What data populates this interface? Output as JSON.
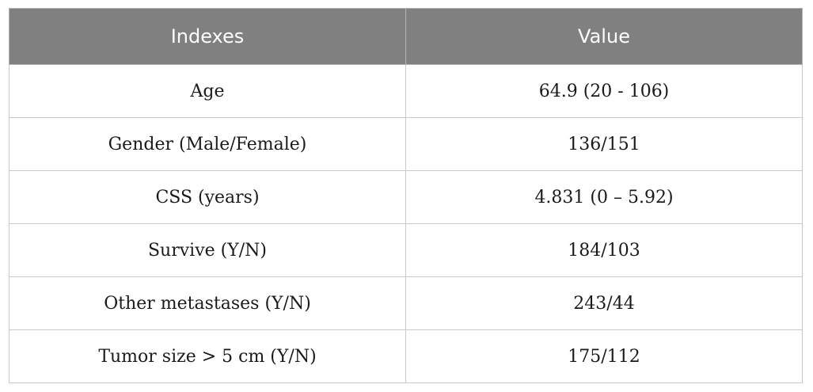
{
  "table": {
    "headers": [
      "Indexes",
      "Value"
    ],
    "rows": [
      {
        "index": "Age",
        "value": "64.9 (20 - 106)"
      },
      {
        "index": "Gender (Male/Female)",
        "value": "136/151"
      },
      {
        "index": "CSS (years)",
        "value": "4.831 (0 – 5.92)"
      },
      {
        "index": "Survive (Y/N)",
        "value": "184/103"
      },
      {
        "index": "Other metastases (Y/N)",
        "value": "243/44"
      },
      {
        "index": "Tumor size > 5 cm (Y/N)",
        "value": "175/112"
      }
    ]
  }
}
